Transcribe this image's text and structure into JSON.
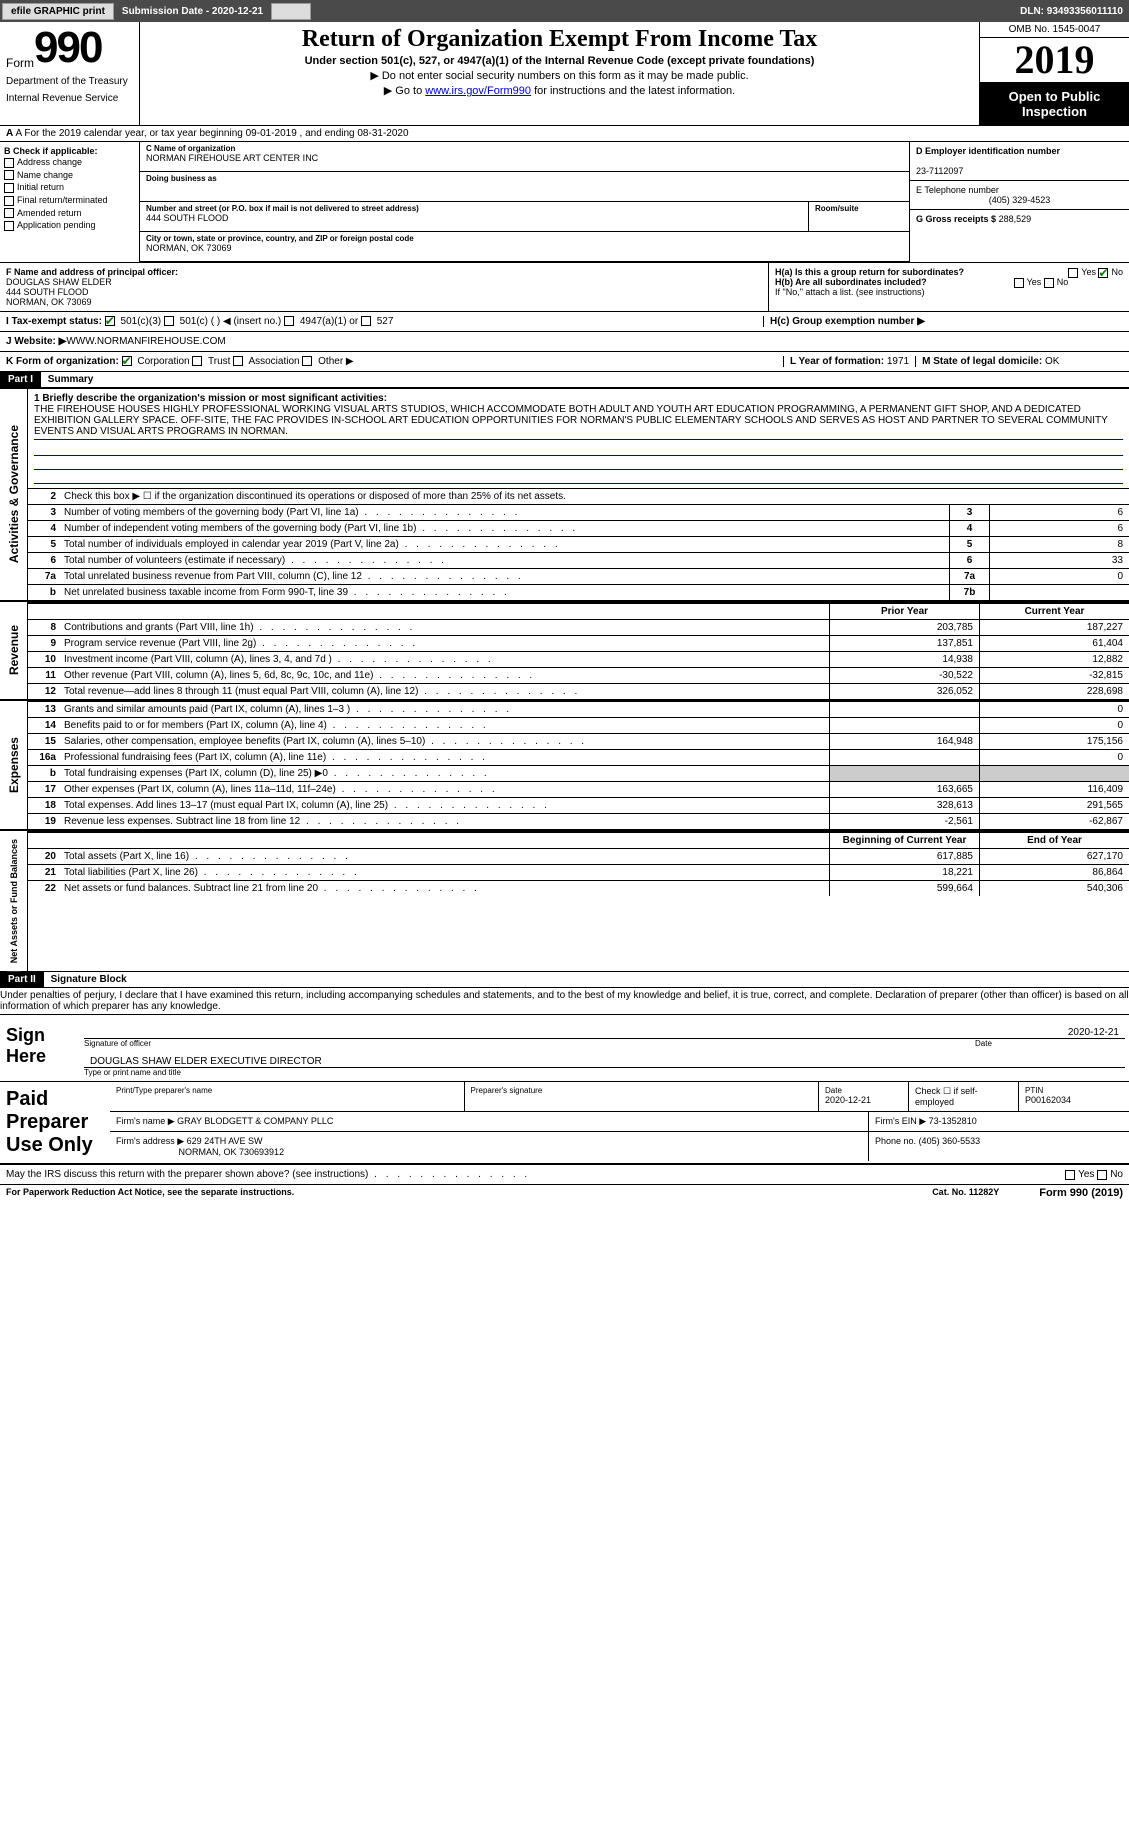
{
  "topbar": {
    "efile": "efile GRAPHIC print",
    "submission": "Submission Date - 2020-12-21",
    "dln": "DLN: 93493356011110"
  },
  "header": {
    "form_word": "Form",
    "form_num": "990",
    "dept1": "Department of the Treasury",
    "dept2": "Internal Revenue Service",
    "title": "Return of Organization Exempt From Income Tax",
    "subtitle": "Under section 501(c), 527, or 4947(a)(1) of the Internal Revenue Code (except private foundations)",
    "arrow1": "▶ Do not enter social security numbers on this form as it may be made public.",
    "arrow2_pre": "▶ Go to ",
    "arrow2_link": "www.irs.gov/Form990",
    "arrow2_post": " for instructions and the latest information.",
    "omb": "OMB No. 1545-0047",
    "year": "2019",
    "open1": "Open to Public",
    "open2": "Inspection"
  },
  "section_a": "A For the 2019 calendar year, or tax year beginning 09-01-2019    , and ending 08-31-2020",
  "b": {
    "title": "B Check if applicable:",
    "addr_change": "Address change",
    "name_change": "Name change",
    "initial": "Initial return",
    "final": "Final return/terminated",
    "amended": "Amended return",
    "app_pending": "Application pending"
  },
  "c": {
    "name_label": "C Name of organization",
    "name": "NORMAN FIREHOUSE ART CENTER INC",
    "dba_label": "Doing business as",
    "dba": "",
    "addr_label": "Number and street (or P.O. box if mail is not delivered to street address)",
    "room_label": "Room/suite",
    "addr": "444 SOUTH FLOOD",
    "city_label": "City or town, state or province, country, and ZIP or foreign postal code",
    "city": "NORMAN, OK  73069"
  },
  "d": {
    "ein_label": "D Employer identification number",
    "ein": "23-7112097",
    "phone_label": "E Telephone number",
    "phone": "(405) 329-4523",
    "gross_label": "G Gross receipts $",
    "gross": "288,529"
  },
  "f": {
    "label": "F  Name and address of principal officer:",
    "name": "DOUGLAS SHAW ELDER",
    "addr1": "444 SOUTH FLOOD",
    "addr2": "NORMAN, OK  73069"
  },
  "h": {
    "ha": "H(a)  Is this a group return for subordinates?",
    "hb": "H(b)  Are all subordinates included?",
    "hb_note": "If \"No,\" attach a list. (see instructions)",
    "hc": "H(c)  Group exemption number ▶",
    "yes": "Yes",
    "no": "No"
  },
  "i": {
    "label": "I   Tax-exempt status:",
    "c3": "501(c)(3)",
    "c": "501(c) (    ) ◀ (insert no.)",
    "a1": "4947(a)(1) or",
    "s527": "527"
  },
  "j": {
    "label": "J   Website: ▶",
    "url": "WWW.NORMANFIREHOUSE.COM"
  },
  "k": {
    "label": "K Form of organization:",
    "corp": "Corporation",
    "trust": "Trust",
    "assoc": "Association",
    "other": "Other ▶",
    "l_label": "L Year of formation:",
    "l_val": "1971",
    "m_label": "M State of legal domicile:",
    "m_val": "OK"
  },
  "part1": {
    "label": "Part I",
    "title": "Summary",
    "vl_activities": "Activities & Governance",
    "vl_revenue": "Revenue",
    "vl_expenses": "Expenses",
    "vl_net": "Net Assets or Fund Balances",
    "line1_label": "1  Briefly describe the organization's mission or most significant activities:",
    "mission": "THE FIREHOUSE HOUSES HIGHLY PROFESSIONAL WORKING VISUAL ARTS STUDIOS, WHICH ACCOMMODATE BOTH ADULT AND YOUTH ART EDUCATION PROGRAMMING, A PERMANENT GIFT SHOP, AND A DEDICATED EXHIBITION GALLERY SPACE. OFF-SITE, THE FAC PROVIDES IN-SCHOOL ART EDUCATION OPPORTUNITIES FOR NORMAN'S PUBLIC ELEMENTARY SCHOOLS AND SERVES AS HOST AND PARTNER TO SEVERAL COMMUNITY EVENTS AND VISUAL ARTS PROGRAMS IN NORMAN.",
    "line2": "Check this box ▶ ☐  if the organization discontinued its operations or disposed of more than 25% of its net assets.",
    "lines": [
      {
        "n": "3",
        "d": "Number of voting members of the governing body (Part VI, line 1a)",
        "box": "3",
        "v": "6"
      },
      {
        "n": "4",
        "d": "Number of independent voting members of the governing body (Part VI, line 1b)",
        "box": "4",
        "v": "6"
      },
      {
        "n": "5",
        "d": "Total number of individuals employed in calendar year 2019 (Part V, line 2a)",
        "box": "5",
        "v": "8"
      },
      {
        "n": "6",
        "d": "Total number of volunteers (estimate if necessary)",
        "box": "6",
        "v": "33"
      },
      {
        "n": "7a",
        "d": "Total unrelated business revenue from Part VIII, column (C), line 12",
        "box": "7a",
        "v": "0"
      },
      {
        "n": "b",
        "d": "Net unrelated business taxable income from Form 990-T, line 39",
        "box": "7b",
        "v": ""
      }
    ],
    "header_prior": "Prior Year",
    "header_current": "Current Year",
    "rev_lines": [
      {
        "n": "8",
        "d": "Contributions and grants (Part VIII, line 1h)",
        "pv": "203,785",
        "cv": "187,227"
      },
      {
        "n": "9",
        "d": "Program service revenue (Part VIII, line 2g)",
        "pv": "137,851",
        "cv": "61,404"
      },
      {
        "n": "10",
        "d": "Investment income (Part VIII, column (A), lines 3, 4, and 7d )",
        "pv": "14,938",
        "cv": "12,882"
      },
      {
        "n": "11",
        "d": "Other revenue (Part VIII, column (A), lines 5, 6d, 8c, 9c, 10c, and 11e)",
        "pv": "-30,522",
        "cv": "-32,815"
      },
      {
        "n": "12",
        "d": "Total revenue—add lines 8 through 11 (must equal Part VIII, column (A), line 12)",
        "pv": "326,052",
        "cv": "228,698"
      }
    ],
    "exp_lines": [
      {
        "n": "13",
        "d": "Grants and similar amounts paid (Part IX, column (A), lines 1–3 )",
        "pv": "",
        "cv": "0"
      },
      {
        "n": "14",
        "d": "Benefits paid to or for members (Part IX, column (A), line 4)",
        "pv": "",
        "cv": "0"
      },
      {
        "n": "15",
        "d": "Salaries, other compensation, employee benefits (Part IX, column (A), lines 5–10)",
        "pv": "164,948",
        "cv": "175,156"
      },
      {
        "n": "16a",
        "d": "Professional fundraising fees (Part IX, column (A), line 11e)",
        "pv": "",
        "cv": "0"
      },
      {
        "n": "b",
        "d": "Total fundraising expenses (Part IX, column (D), line 25) ▶0",
        "pv": "",
        "cv": "",
        "shade": true
      },
      {
        "n": "17",
        "d": "Other expenses (Part IX, column (A), lines 11a–11d, 11f–24e)",
        "pv": "163,665",
        "cv": "116,409"
      },
      {
        "n": "18",
        "d": "Total expenses. Add lines 13–17 (must equal Part IX, column (A), line 25)",
        "pv": "328,613",
        "cv": "291,565"
      },
      {
        "n": "19",
        "d": "Revenue less expenses. Subtract line 18 from line 12",
        "pv": "-2,561",
        "cv": "-62,867"
      }
    ],
    "header_begin": "Beginning of Current Year",
    "header_end": "End of Year",
    "net_lines": [
      {
        "n": "20",
        "d": "Total assets (Part X, line 16)",
        "pv": "617,885",
        "cv": "627,170"
      },
      {
        "n": "21",
        "d": "Total liabilities (Part X, line 26)",
        "pv": "18,221",
        "cv": "86,864"
      },
      {
        "n": "22",
        "d": "Net assets or fund balances. Subtract line 21 from line 20",
        "pv": "599,664",
        "cv": "540,306"
      }
    ]
  },
  "part2": {
    "label": "Part II",
    "title": "Signature Block",
    "declare": "Under penalties of perjury, I declare that I have examined this return, including accompanying schedules and statements, and to the best of my knowledge and belief, it is true, correct, and complete. Declaration of preparer (other than officer) is based on all information of which preparer has any knowledge.",
    "sign_here": "Sign Here",
    "sig_officer": "Signature of officer",
    "date": "Date",
    "sig_date": "2020-12-21",
    "officer_name": "DOUGLAS SHAW ELDER  EXECUTIVE DIRECTOR",
    "type_name": "Type or print name and title",
    "paid_prep": "Paid Preparer Use Only",
    "prep_name_label": "Print/Type preparer's name",
    "prep_sig_label": "Preparer's signature",
    "prep_date_label": "Date",
    "prep_date": "2020-12-21",
    "check_self": "Check ☐ if self-employed",
    "ptin_label": "PTIN",
    "ptin": "P00162034",
    "firm_name_label": "Firm's name    ▶",
    "firm_name": "GRAY BLODGETT & COMPANY PLLC",
    "firm_ein_label": "Firm's EIN ▶",
    "firm_ein": "73-1352810",
    "firm_addr_label": "Firm's address ▶",
    "firm_addr1": "629 24TH AVE SW",
    "firm_addr2": "NORMAN, OK  730693912",
    "firm_phone_label": "Phone no.",
    "firm_phone": "(405) 360-5533",
    "discuss": "May the IRS discuss this return with the preparer shown above? (see instructions)"
  },
  "footer": {
    "paperwork": "For Paperwork Reduction Act Notice, see the separate instructions.",
    "cat": "Cat. No. 11282Y",
    "form": "Form 990 (2019)"
  }
}
